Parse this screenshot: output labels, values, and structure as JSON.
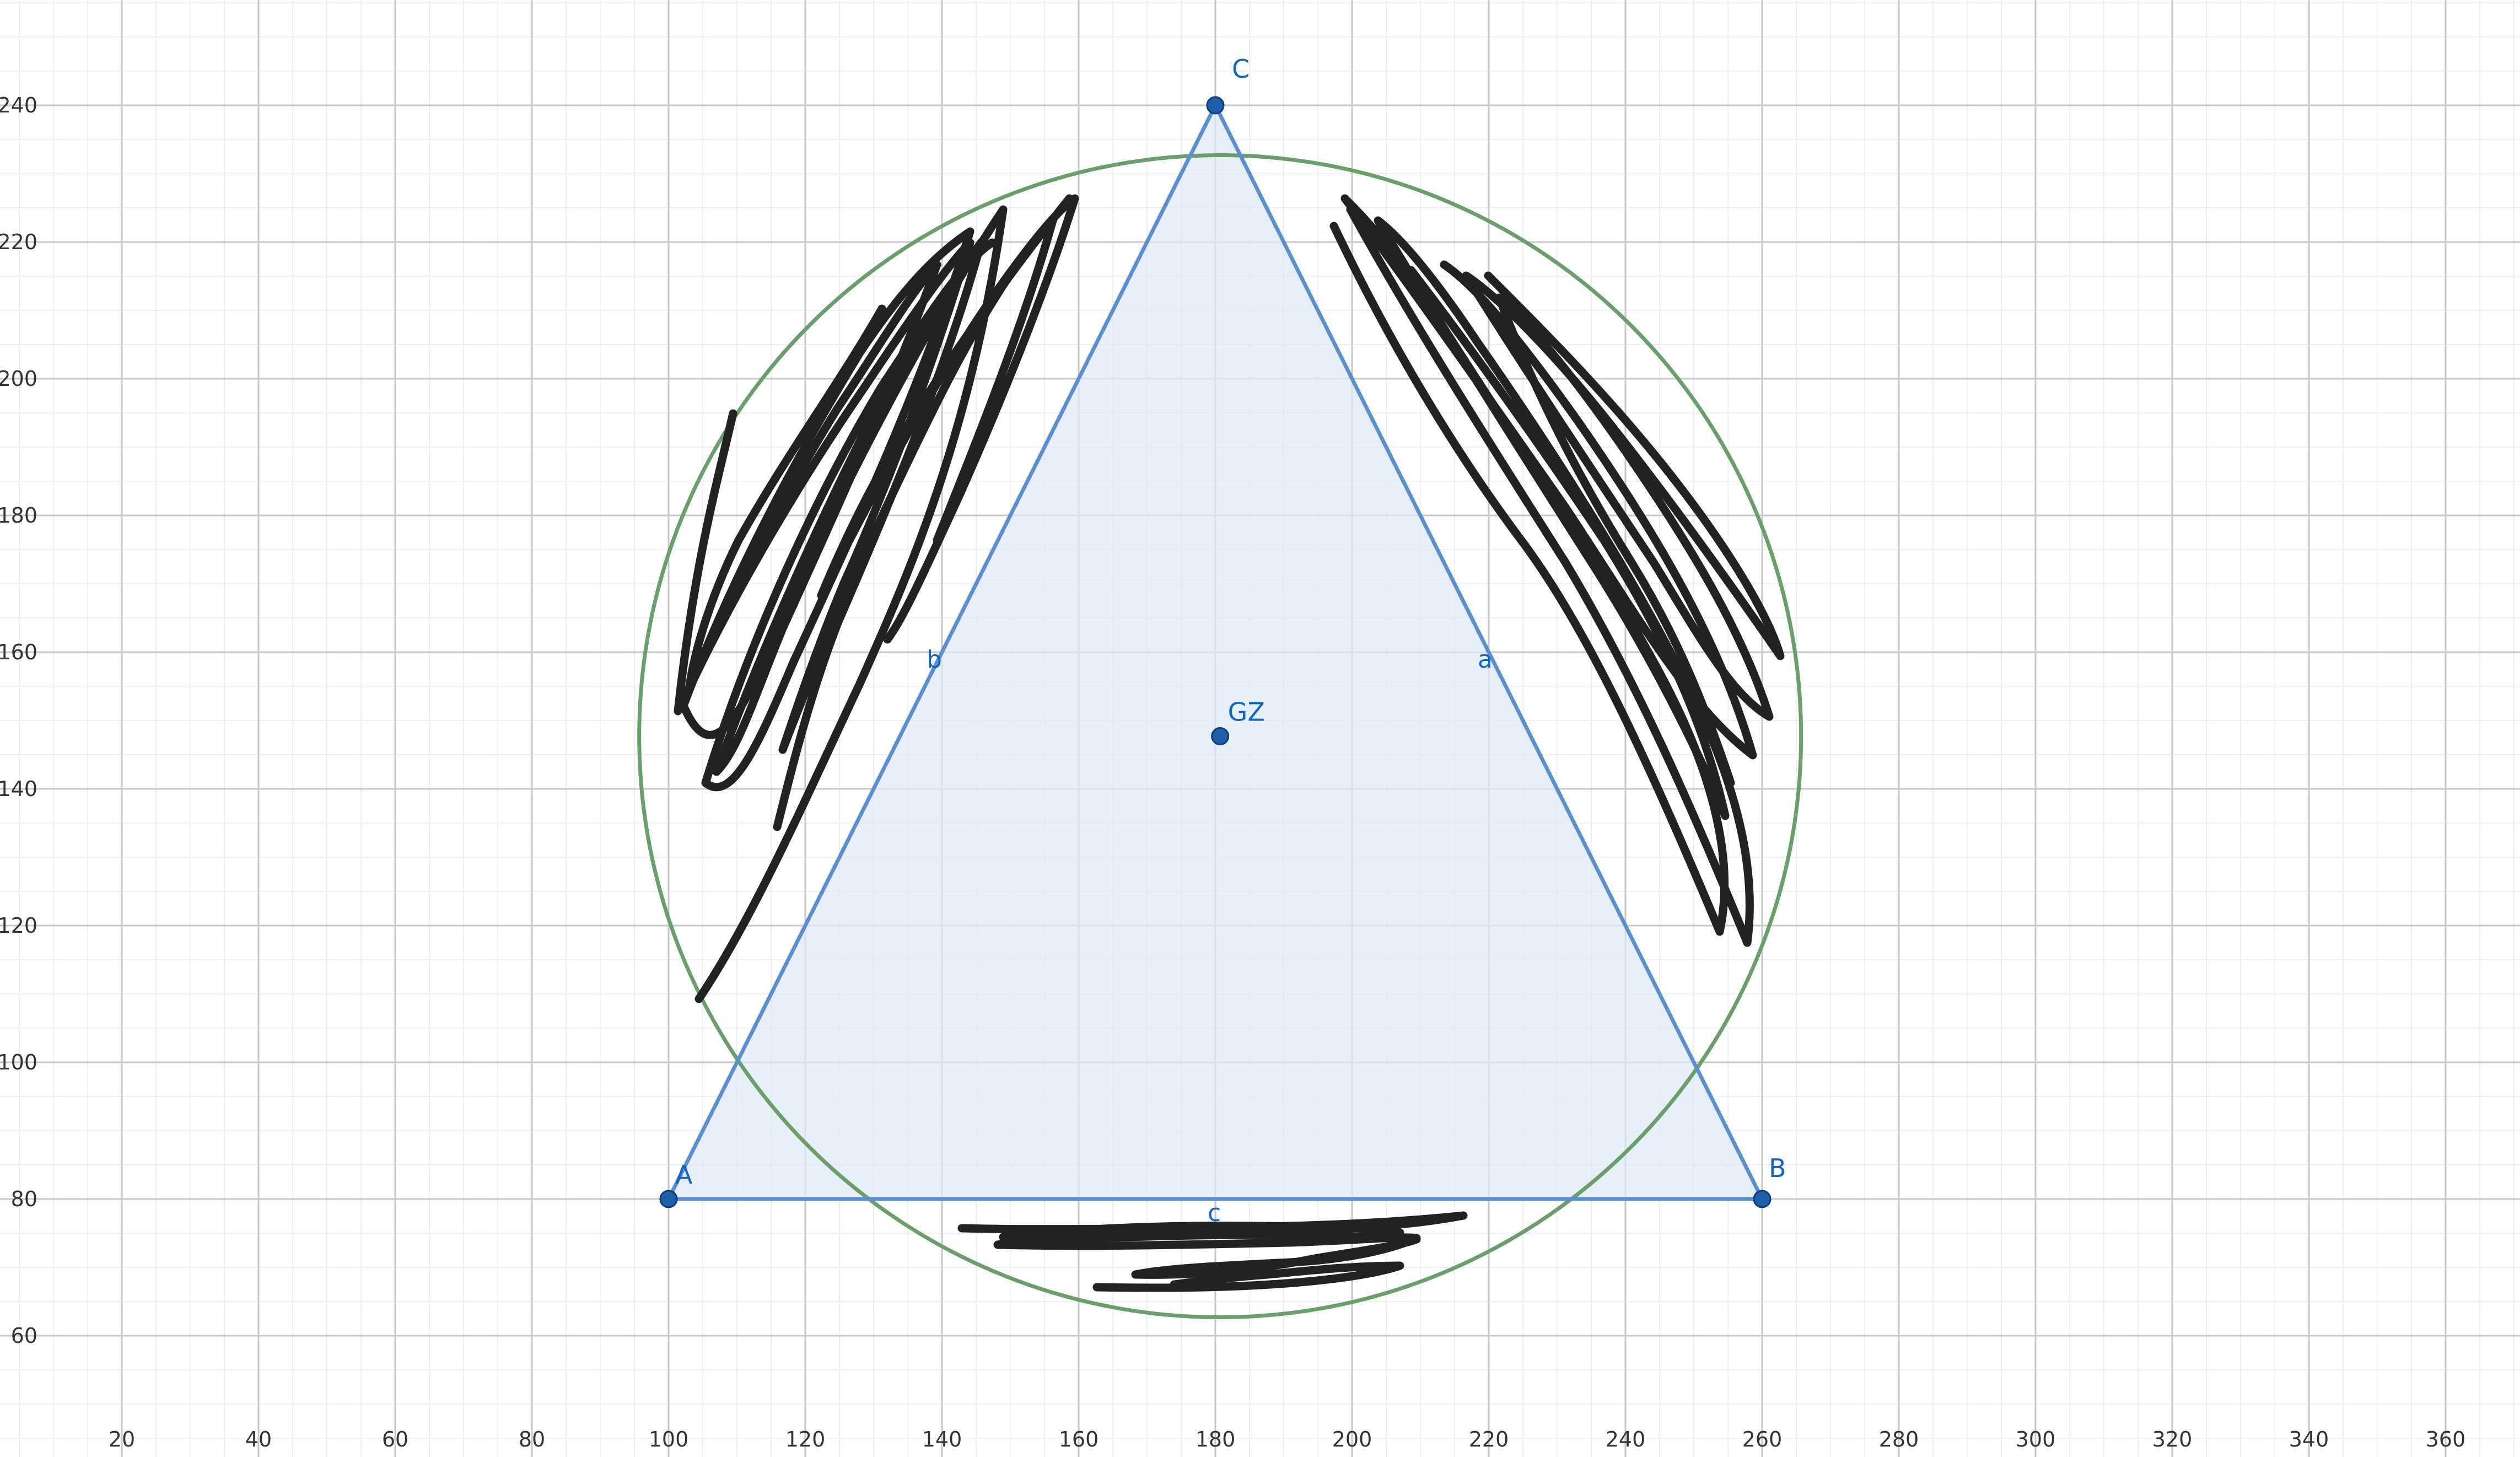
{
  "app": "GeoGebra graphics view",
  "axes": {
    "x_ticks": [
      "20",
      "40",
      "60",
      "80",
      "100",
      "120",
      "140",
      "160",
      "180",
      "200",
      "220",
      "240",
      "260",
      "280",
      "300",
      "320",
      "340",
      "360"
    ],
    "y_ticks": [
      "60",
      "80",
      "100",
      "120",
      "140",
      "160",
      "180",
      "200",
      "220",
      "240"
    ]
  },
  "colors": {
    "grid_minor": "#efefef",
    "grid_major": "#c8c8c8",
    "triangle_stroke": "#5b8fcf",
    "triangle_fill": "#dfe9f7",
    "point_fill": "#1f5faa",
    "label": "#1565c0",
    "circle": "#6a9e6a",
    "scribble": "#222222"
  },
  "points": {
    "A": {
      "label": "A",
      "x": 100,
      "y": 80
    },
    "B": {
      "label": "B",
      "x": 260,
      "y": 80
    },
    "C": {
      "label": "C",
      "x": 180,
      "y": 240
    },
    "GZ": {
      "label": "GZ",
      "x": 180.7,
      "y": 147.7
    }
  },
  "segments": {
    "a": {
      "label": "a"
    },
    "b": {
      "label": "b"
    },
    "c": {
      "label": "c"
    }
  },
  "circle": {
    "cx": 180.7,
    "cy": 147.7,
    "r": 85
  }
}
